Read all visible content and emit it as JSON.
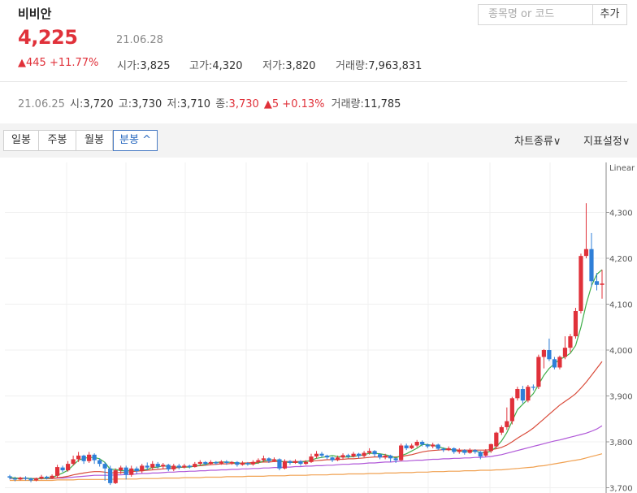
{
  "stock": {
    "name": "비비안",
    "price": "4,225",
    "date": "21.06.28",
    "change": "▲445 +11.77%",
    "open_label": "시가",
    "open": "3,825",
    "high_label": "고가",
    "high": "4,320",
    "low_label": "저가",
    "low": "3,820",
    "volume_label": "거래량",
    "volume": "7,963,831"
  },
  "search": {
    "placeholder": "종목명 or 코드",
    "add_label": "추가"
  },
  "realtime": {
    "date": "21.06.25",
    "open_label": "시",
    "open": "3,720",
    "high_label": "고",
    "high": "3,730",
    "low_label": "저",
    "low": "3,710",
    "close_label": "종",
    "close": "3,730",
    "change": "▲5 +0.13%",
    "volume_label": "거래량",
    "volume": "11,785"
  },
  "tabs": [
    {
      "label": "일봉",
      "active": false
    },
    {
      "label": "주봉",
      "active": false
    },
    {
      "label": "월봉",
      "active": false
    },
    {
      "label": "분봉 ^",
      "active": true
    }
  ],
  "menus": {
    "chart_type": "차트종류∨",
    "indicator": "지표설정∨"
  },
  "colors": {
    "up": "#e0313a",
    "down": "#2f7fd8",
    "ma5": "#3fae49",
    "ma20": "#d94b3a",
    "ma60": "#b058d8",
    "ma120": "#f0a050"
  },
  "chart_data": {
    "type": "candlestick",
    "scale_label": "Linear",
    "yticks": [
      "4,300",
      "4,200",
      "4,100",
      "4,000",
      "3,900",
      "3,800",
      "3,700"
    ],
    "ylim": [
      3700,
      4330
    ],
    "grid": true,
    "candles": [
      [
        3725,
        3722,
        3728,
        3718
      ],
      [
        3720,
        3718,
        3724,
        3714
      ],
      [
        3718,
        3722,
        3724,
        3716
      ],
      [
        3722,
        3720,
        3725,
        3716
      ],
      [
        3720,
        3716,
        3722,
        3712
      ],
      [
        3716,
        3720,
        3722,
        3714
      ],
      [
        3720,
        3724,
        3728,
        3718
      ],
      [
        3724,
        3721,
        3726,
        3718
      ],
      [
        3721,
        3726,
        3729,
        3719
      ],
      [
        3726,
        3745,
        3750,
        3722
      ],
      [
        3744,
        3738,
        3748,
        3734
      ],
      [
        3738,
        3752,
        3758,
        3735
      ],
      [
        3752,
        3762,
        3770,
        3748
      ],
      [
        3762,
        3770,
        3778,
        3756
      ],
      [
        3770,
        3758,
        3772,
        3752
      ],
      [
        3758,
        3772,
        3778,
        3754
      ],
      [
        3772,
        3760,
        3775,
        3752
      ],
      [
        3760,
        3752,
        3764,
        3746
      ],
      [
        3752,
        3742,
        3756,
        3715
      ],
      [
        3742,
        3710,
        3748,
        3706
      ],
      [
        3710,
        3738,
        3742,
        3708
      ],
      [
        3738,
        3744,
        3748,
        3730
      ],
      [
        3744,
        3728,
        3748,
        3718
      ],
      [
        3728,
        3742,
        3748,
        3724
      ],
      [
        3742,
        3736,
        3746,
        3730
      ],
      [
        3736,
        3748,
        3752,
        3732
      ],
      [
        3748,
        3744,
        3755,
        3738
      ],
      [
        3744,
        3752,
        3758,
        3740
      ],
      [
        3752,
        3746,
        3756,
        3742
      ],
      [
        3746,
        3750,
        3754,
        3740
      ],
      [
        3750,
        3740,
        3752,
        3736
      ],
      [
        3740,
        3748,
        3752,
        3736
      ],
      [
        3748,
        3744,
        3752,
        3740
      ],
      [
        3744,
        3748,
        3752,
        3742
      ],
      [
        3748,
        3745,
        3750,
        3742
      ],
      [
        3745,
        3752,
        3756,
        3744
      ],
      [
        3752,
        3756,
        3760,
        3748
      ],
      [
        3756,
        3752,
        3758,
        3748
      ],
      [
        3752,
        3756,
        3760,
        3750
      ],
      [
        3756,
        3753,
        3758,
        3750
      ],
      [
        3753,
        3757,
        3760,
        3750
      ],
      [
        3757,
        3754,
        3760,
        3750
      ],
      [
        3754,
        3756,
        3758,
        3750
      ],
      [
        3756,
        3750,
        3758,
        3746
      ],
      [
        3750,
        3754,
        3758,
        3748
      ],
      [
        3754,
        3751,
        3756,
        3748
      ],
      [
        3751,
        3756,
        3760,
        3748
      ],
      [
        3756,
        3760,
        3764,
        3752
      ],
      [
        3760,
        3764,
        3770,
        3756
      ],
      [
        3764,
        3758,
        3766,
        3754
      ],
      [
        3758,
        3762,
        3766,
        3756
      ],
      [
        3762,
        3742,
        3764,
        3738
      ],
      [
        3742,
        3758,
        3762,
        3740
      ],
      [
        3758,
        3754,
        3760,
        3750
      ],
      [
        3754,
        3758,
        3762,
        3752
      ],
      [
        3758,
        3752,
        3760,
        3748
      ],
      [
        3752,
        3756,
        3760,
        3750
      ],
      [
        3756,
        3768,
        3774,
        3754
      ],
      [
        3768,
        3774,
        3780,
        3764
      ],
      [
        3774,
        3770,
        3778,
        3766
      ],
      [
        3770,
        3766,
        3772,
        3762
      ],
      [
        3766,
        3760,
        3768,
        3756
      ],
      [
        3760,
        3766,
        3770,
        3758
      ],
      [
        3766,
        3771,
        3775,
        3762
      ],
      [
        3771,
        3768,
        3774,
        3764
      ],
      [
        3768,
        3774,
        3778,
        3766
      ],
      [
        3774,
        3769,
        3776,
        3764
      ],
      [
        3769,
        3776,
        3780,
        3766
      ],
      [
        3776,
        3780,
        3786,
        3772
      ],
      [
        3780,
        3773,
        3782,
        3768
      ],
      [
        3773,
        3766,
        3775,
        3762
      ],
      [
        3766,
        3770,
        3774,
        3762
      ],
      [
        3770,
        3764,
        3772,
        3756
      ],
      [
        3764,
        3760,
        3766,
        3754
      ],
      [
        3760,
        3792,
        3796,
        3758
      ],
      [
        3792,
        3786,
        3796,
        3782
      ],
      [
        3786,
        3792,
        3796,
        3784
      ],
      [
        3792,
        3800,
        3804,
        3788
      ],
      [
        3800,
        3794,
        3803,
        3790
      ],
      [
        3794,
        3790,
        3796,
        3786
      ],
      [
        3790,
        3794,
        3798,
        3786
      ],
      [
        3794,
        3785,
        3796,
        3782
      ],
      [
        3785,
        3782,
        3788,
        3778
      ],
      [
        3782,
        3786,
        3790,
        3780
      ],
      [
        3786,
        3778,
        3788,
        3774
      ],
      [
        3778,
        3782,
        3786,
        3774
      ],
      [
        3782,
        3776,
        3784,
        3772
      ],
      [
        3776,
        3782,
        3786,
        3774
      ],
      [
        3782,
        3778,
        3784,
        3774
      ],
      [
        3778,
        3768,
        3780,
        3762
      ],
      [
        3770,
        3780,
        3784,
        3768
      ],
      [
        3780,
        3795,
        3796,
        3776
      ],
      [
        3790,
        3820,
        3822,
        3786
      ],
      [
        3820,
        3832,
        3836,
        3815
      ],
      [
        3832,
        3845,
        3875,
        3826
      ],
      [
        3845,
        3895,
        3898,
        3838
      ],
      [
        3895,
        3915,
        3920,
        3890
      ],
      [
        3915,
        3890,
        3922,
        3884
      ],
      [
        3890,
        3920,
        3924,
        3886
      ],
      [
        3920,
        3918,
        3925,
        3912
      ],
      [
        3920,
        3985,
        3990,
        3915
      ],
      [
        3985,
        4000,
        4002,
        3960
      ],
      [
        4000,
        3980,
        4025,
        3976
      ],
      [
        3980,
        3962,
        3985,
        3958
      ],
      [
        3962,
        3985,
        3988,
        3958
      ],
      [
        3985,
        4005,
        4030,
        3980
      ],
      [
        4005,
        4030,
        4035,
        3995
      ],
      [
        4030,
        4085,
        4092,
        4025
      ],
      [
        4085,
        4205,
        4210,
        4080
      ],
      [
        4205,
        4220,
        4320,
        4200
      ],
      [
        4220,
        4150,
        4255,
        4138
      ],
      [
        4150,
        4142,
        4168,
        4130
      ],
      [
        4142,
        4145,
        4175,
        4112
      ]
    ],
    "ma5": [
      3722,
      3721,
      3720,
      3721,
      3720,
      3719,
      3720,
      3721,
      3722,
      3727,
      3732,
      3738,
      3749,
      3760,
      3764,
      3766,
      3766,
      3763,
      3755,
      3740,
      3740,
      3737,
      3737,
      3738,
      3738,
      3738,
      3740,
      3744,
      3745,
      3748,
      3746,
      3745,
      3745,
      3745,
      3745,
      3747,
      3749,
      3751,
      3754,
      3755,
      3756,
      3756,
      3755,
      3754,
      3753,
      3752,
      3752,
      3754,
      3758,
      3760,
      3761,
      3758,
      3756,
      3755,
      3755,
      3756,
      3757,
      3760,
      3764,
      3766,
      3768,
      3770,
      3768,
      3767,
      3767,
      3768,
      3770,
      3772,
      3775,
      3775,
      3774,
      3772,
      3769,
      3765,
      3770,
      3774,
      3780,
      3786,
      3794,
      3794,
      3792,
      3790,
      3786,
      3784,
      3782,
      3780,
      3779,
      3779,
      3780,
      3777,
      3776,
      3780,
      3789,
      3802,
      3820,
      3845,
      3870,
      3882,
      3893,
      3905,
      3925,
      3945,
      3960,
      3970,
      3980,
      3985,
      3993,
      4010,
      4050,
      4100,
      4140,
      4165,
      4175
    ],
    "ma20": [
      3722,
      3721,
      3721,
      3721,
      3720,
      3720,
      3720,
      3720,
      3720,
      3722,
      3723,
      3725,
      3728,
      3730,
      3732,
      3734,
      3735,
      3735,
      3734,
      3732,
      3733,
      3733,
      3734,
      3735,
      3736,
      3737,
      3738,
      3739,
      3740,
      3741,
      3742,
      3743,
      3744,
      3745,
      3746,
      3747,
      3748,
      3749,
      3750,
      3751,
      3752,
      3752,
      3753,
      3753,
      3754,
      3754,
      3755,
      3755,
      3756,
      3756,
      3757,
      3757,
      3757,
      3757,
      3757,
      3757,
      3758,
      3758,
      3759,
      3760,
      3761,
      3761,
      3762,
      3762,
      3763,
      3763,
      3764,
      3765,
      3766,
      3767,
      3767,
      3767,
      3767,
      3767,
      3768,
      3770,
      3772,
      3775,
      3778,
      3780,
      3781,
      3782,
      3783,
      3783,
      3783,
      3782,
      3782,
      3782,
      3782,
      3782,
      3782,
      3783,
      3785,
      3788,
      3793,
      3800,
      3808,
      3815,
      3822,
      3830,
      3840,
      3850,
      3860,
      3870,
      3880,
      3888,
      3896,
      3905,
      3917,
      3930,
      3945,
      3960,
      3975
    ],
    "ma60": [
      3720,
      3720,
      3720,
      3720,
      3720,
      3720,
      3720,
      3720,
      3720,
      3721,
      3721,
      3722,
      3723,
      3724,
      3725,
      3726,
      3727,
      3727,
      3727,
      3727,
      3728,
      3728,
      3729,
      3729,
      3730,
      3731,
      3731,
      3732,
      3732,
      3733,
      3734,
      3734,
      3735,
      3735,
      3736,
      3736,
      3737,
      3737,
      3738,
      3738,
      3739,
      3739,
      3740,
      3740,
      3741,
      3741,
      3742,
      3742,
      3743,
      3743,
      3744,
      3744,
      3745,
      3745,
      3746,
      3746,
      3747,
      3747,
      3748,
      3748,
      3749,
      3749,
      3750,
      3751,
      3751,
      3752,
      3752,
      3753,
      3754,
      3754,
      3755,
      3756,
      3756,
      3757,
      3758,
      3758,
      3759,
      3760,
      3760,
      3761,
      3762,
      3762,
      3763,
      3763,
      3764,
      3764,
      3765,
      3765,
      3766,
      3766,
      3767,
      3768,
      3770,
      3772,
      3775,
      3778,
      3781,
      3784,
      3787,
      3790,
      3793,
      3796,
      3799,
      3802,
      3804,
      3807,
      3810,
      3813,
      3816,
      3819,
      3823,
      3828,
      3835
    ],
    "ma120": [
      3716,
      3716,
      3716,
      3716,
      3716,
      3716,
      3716,
      3716,
      3716,
      3717,
      3717,
      3717,
      3717,
      3718,
      3718,
      3718,
      3718,
      3718,
      3718,
      3718,
      3719,
      3719,
      3719,
      3719,
      3719,
      3720,
      3720,
      3720,
      3720,
      3721,
      3721,
      3721,
      3721,
      3722,
      3722,
      3722,
      3722,
      3723,
      3723,
      3723,
      3723,
      3724,
      3724,
      3724,
      3724,
      3725,
      3725,
      3725,
      3725,
      3726,
      3726,
      3726,
      3726,
      3727,
      3727,
      3727,
      3727,
      3728,
      3728,
      3728,
      3728,
      3729,
      3729,
      3729,
      3730,
      3730,
      3730,
      3730,
      3731,
      3731,
      3731,
      3732,
      3732,
      3732,
      3733,
      3733,
      3733,
      3734,
      3734,
      3734,
      3735,
      3735,
      3735,
      3736,
      3736,
      3736,
      3737,
      3737,
      3737,
      3738,
      3738,
      3738,
      3739,
      3739,
      3740,
      3741,
      3742,
      3743,
      3744,
      3745,
      3747,
      3748,
      3750,
      3752,
      3754,
      3756,
      3758,
      3760,
      3762,
      3765,
      3768,
      3771,
      3774
    ]
  }
}
